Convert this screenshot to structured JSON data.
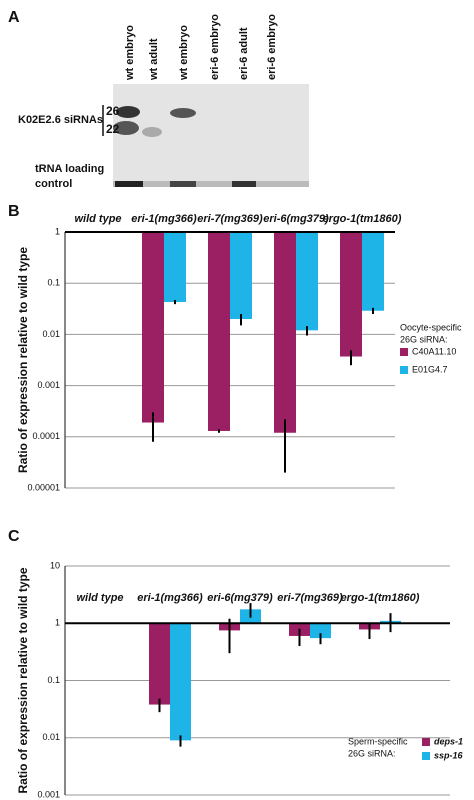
{
  "panel_a": {
    "label": "A",
    "lanes": [
      "wt embryo",
      "wt adult",
      "wt embryo",
      "eri-6 embryo",
      "eri-6 adult",
      "eri-6 embryo"
    ],
    "band_label": "K02E2.6 siRNAs",
    "size_marks": [
      "26",
      "22"
    ],
    "control_label": [
      "tRNA loading",
      "control"
    ]
  },
  "chart_data": [
    {
      "type": "bar",
      "panel": "B",
      "y_label": "Ratio of expression relative to wild type",
      "log_scale": true,
      "grid": true,
      "categories": [
        "wild type",
        "eri-1(mg366)",
        "eri-7(mg369)",
        "eri-6(mg379)",
        "ergo-1(tm1860)"
      ],
      "series": [
        {
          "name": "C40A11.10",
          "color": "#9b1f63",
          "values": [
            1,
            0.00019,
            0.00013,
            0.00012,
            0.0037
          ],
          "errors": [
            0,
            0.00011,
            1e-05,
            0.0001,
            0.0012
          ]
        },
        {
          "name": "E01G4.7",
          "color": "#1eb4e8",
          "values": [
            1,
            0.043,
            0.02,
            0.012,
            0.029
          ],
          "errors": [
            0,
            0.004,
            0.005,
            0.0025,
            0.004
          ]
        }
      ],
      "legend_title": [
        "Oocyte-specific",
        "26G siRNA:"
      ],
      "ylim": [
        1e-05,
        1
      ],
      "yticks": [
        1,
        0.1,
        0.01,
        0.001,
        0.0001,
        1e-05
      ]
    },
    {
      "type": "bar",
      "panel": "C",
      "y_label": "Ratio of expression relative to wild type",
      "log_scale": true,
      "grid": true,
      "categories": [
        "wild type",
        "eri-1(mg366)",
        "eri-6(mg379)",
        "eri-7(mg369)",
        "ergo-1(tm1860)"
      ],
      "series": [
        {
          "name": "deps-1",
          "color": "#9b1f63",
          "values": [
            1,
            0.038,
            0.75,
            0.6,
            0.78
          ],
          "errors": [
            0,
            0.01,
            0.45,
            0.2,
            0.25
          ]
        },
        {
          "name": "ssp-16",
          "color": "#1eb4e8",
          "values": [
            1,
            0.009,
            1.75,
            0.55,
            1.1
          ],
          "errors": [
            0,
            0.002,
            0.5,
            0.12,
            0.4
          ]
        }
      ],
      "legend_title": [
        "Sperm-specific",
        "26G siRNA:"
      ],
      "ylim": [
        0.001,
        10
      ],
      "yticks": [
        10,
        1,
        0.1,
        0.01,
        0.001
      ]
    }
  ]
}
